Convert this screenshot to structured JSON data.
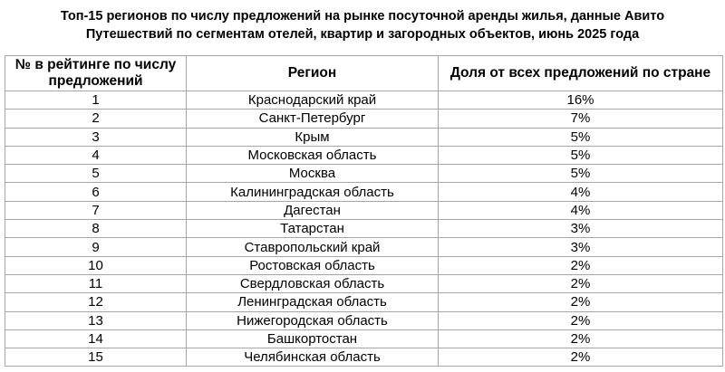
{
  "title": {
    "line1": "Топ-15 регионов по числу предложений на рынке посуточной аренды жилья, данные Авито",
    "line2": "Путешествий по сегментам отелей, квартир и загородных объектов, июнь 2025 года"
  },
  "table": {
    "headers": [
      "№ в рейтинге по числу предложений",
      "Регион",
      "Доля от всех предложений по стране"
    ],
    "rows": [
      [
        "1",
        "Краснодарский край",
        "16%"
      ],
      [
        "2",
        "Санкт-Петербург",
        "7%"
      ],
      [
        "3",
        "Крым",
        "5%"
      ],
      [
        "4",
        "Московская область",
        "5%"
      ],
      [
        "5",
        "Москва",
        "5%"
      ],
      [
        "6",
        "Калининградская область",
        "4%"
      ],
      [
        "7",
        "Дагестан",
        "4%"
      ],
      [
        "8",
        "Татарстан",
        "3%"
      ],
      [
        "9",
        "Ставропольский край",
        "3%"
      ],
      [
        "10",
        "Ростовская область",
        "2%"
      ],
      [
        "11",
        "Свердловская область",
        "2%"
      ],
      [
        "12",
        "Ленинградская область",
        "2%"
      ],
      [
        "13",
        "Нижегородская область",
        "2%"
      ],
      [
        "14",
        "Башкортостан",
        "2%"
      ],
      [
        "15",
        "Челябинская область",
        "2%"
      ]
    ]
  }
}
